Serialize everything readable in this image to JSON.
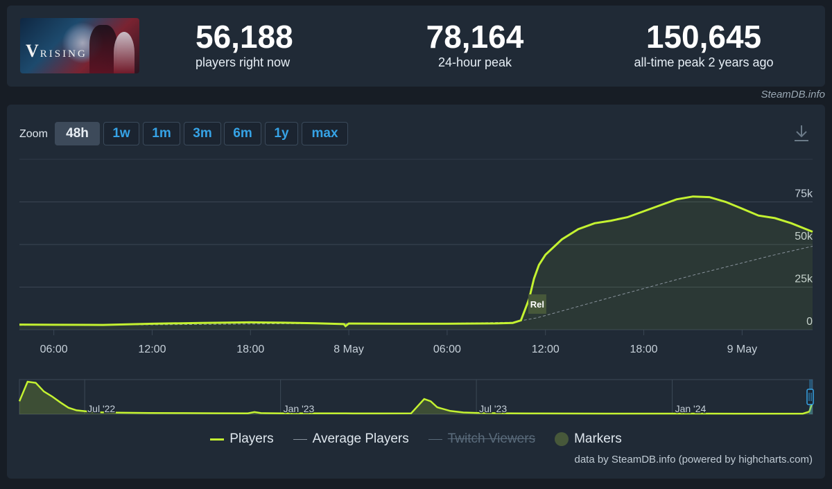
{
  "header": {
    "game_logo_text": "RISING",
    "game_logo_initial": "V",
    "stats": [
      {
        "value": "56,188",
        "label": "players right now"
      },
      {
        "value": "78,164",
        "label": "24-hour peak"
      },
      {
        "value": "150,645",
        "label": "all-time peak 2 years ago"
      }
    ],
    "brand": "SteamDB.info"
  },
  "zoom": {
    "label": "Zoom",
    "buttons": [
      "48h",
      "1w",
      "1m",
      "3m",
      "6m",
      "1y",
      "max"
    ],
    "active": "48h"
  },
  "chart_data": [
    {
      "type": "line",
      "x_unit": "hours since 7 May 00:00",
      "x_ticks": [
        "06:00",
        "12:00",
        "18:00",
        "8 May",
        "06:00",
        "12:00",
        "18:00",
        "9 May"
      ],
      "y_ticks": [
        "0",
        "25k",
        "50k",
        "75k"
      ],
      "ylim": [
        0,
        100000
      ],
      "xlim": [
        3.9,
        52.3
      ],
      "series": [
        {
          "name": "Players",
          "color": "#c4f231",
          "x": [
            3.9,
            6,
            9,
            12,
            15,
            18,
            20,
            22,
            23.7,
            23.8,
            24,
            27,
            30,
            33,
            34,
            34.5,
            35,
            35.3,
            35.6,
            36,
            37,
            38,
            39,
            40,
            41,
            42,
            43,
            44,
            45,
            46,
            47,
            48,
            49,
            50,
            51,
            52.3
          ],
          "values": [
            3000,
            2900,
            2800,
            3500,
            4000,
            4300,
            4100,
            3800,
            3300,
            2100,
            3600,
            3500,
            3500,
            3700,
            4000,
            5500,
            18000,
            30000,
            38000,
            44000,
            53000,
            59000,
            62500,
            64000,
            66000,
            69500,
            73000,
            76500,
            78164,
            77800,
            75000,
            71000,
            67000,
            65500,
            62500,
            57500
          ]
        },
        {
          "name": "Average Players",
          "color": "#8a949e",
          "x": [
            3.9,
            12,
            20,
            24,
            30,
            34,
            35.5,
            40,
            45,
            50,
            52.3
          ],
          "values": [
            2600,
            2900,
            3500,
            3600,
            3800,
            4400,
            7000,
            19000,
            32000,
            44000,
            49000
          ]
        }
      ],
      "markers": [
        {
          "label": "Rel",
          "x": 35.5
        }
      ]
    },
    {
      "type": "area",
      "x_unit": "months since Jan 2022",
      "x_ticks": [
        "Jul '22",
        "Jan '23",
        "Jul '23",
        "Jan '24"
      ],
      "xlim": [
        4.0,
        28.3
      ],
      "ylim": [
        0,
        160000
      ],
      "series": [
        {
          "name": "Players",
          "color": "#c4f231",
          "x": [
            4.0,
            4.25,
            4.5,
            4.75,
            5.0,
            5.25,
            5.5,
            5.75,
            6,
            6.5,
            7,
            8,
            9,
            10,
            11,
            11.2,
            11.4,
            12,
            13,
            14,
            15,
            16,
            16.4,
            16.6,
            16.8,
            17.2,
            17.6,
            18,
            19,
            20,
            22,
            24,
            26,
            28,
            28.2,
            28.3
          ],
          "values": [
            60000,
            150000,
            145000,
            105000,
            82000,
            55000,
            30000,
            18000,
            14000,
            9000,
            7000,
            5500,
            5000,
            4500,
            4300,
            10000,
            5000,
            4000,
            3800,
            3700,
            3600,
            4000,
            70000,
            60000,
            32000,
            15000,
            8000,
            6000,
            4000,
            3500,
            3000,
            2800,
            2600,
            2500,
            12000,
            56188
          ]
        }
      ]
    }
  ],
  "legend": [
    {
      "name": "Players",
      "color": "#c4f231",
      "visible": true,
      "symbol": "line"
    },
    {
      "name": "Average Players",
      "color": "#8a949e",
      "visible": true,
      "symbol": "line"
    },
    {
      "name": "Twitch Viewers",
      "color": "#5a6b7b",
      "visible": false,
      "symbol": "line"
    },
    {
      "name": "Markers",
      "color": "#47583a",
      "visible": true,
      "symbol": "circle"
    }
  ],
  "credit": "data by SteamDB.info (powered by highcharts.com)"
}
